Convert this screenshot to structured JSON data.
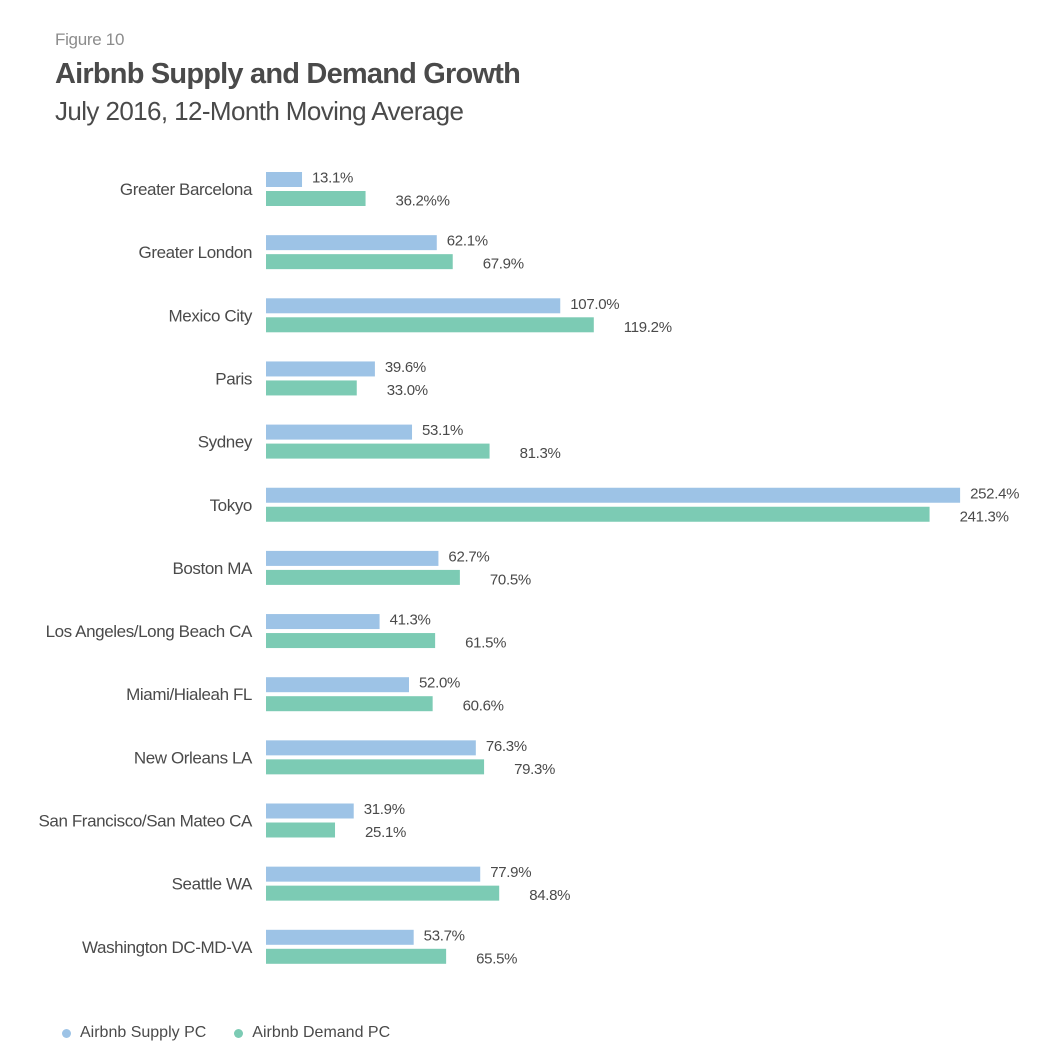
{
  "figure_label": "Figure 10",
  "chart_data": {
    "type": "bar",
    "orientation": "horizontal",
    "title": "Airbnb Supply and Demand Growth",
    "subtitle": "July 2016, 12-Month Moving Average",
    "categories": [
      "Greater Barcelona",
      "Greater London",
      "Mexico City",
      "Paris",
      "Sydney",
      "Tokyo",
      "Boston MA",
      "Los Angeles/Long Beach CA",
      "Miami/Hialeah FL",
      "New Orleans LA",
      "San Francisco/San Mateo CA",
      "Seattle WA",
      "Washington DC-MD-VA"
    ],
    "series": [
      {
        "name": "Airbnb Supply PC",
        "color": "#9dc3e6",
        "values": [
          13.1,
          62.1,
          107.0,
          39.6,
          53.1,
          252.4,
          62.7,
          41.3,
          52.0,
          76.3,
          31.9,
          77.9,
          53.7
        ],
        "labels": [
          "13.1%",
          "62.1%",
          "107.0%",
          "39.6%",
          "53.1%",
          "252.4%",
          "62.7%",
          "41.3%",
          "52.0%",
          "76.3%",
          "31.9%",
          "77.9%",
          "53.7%"
        ]
      },
      {
        "name": "Airbnb Demand PC",
        "color": "#7ccbb4",
        "values": [
          36.2,
          67.9,
          119.2,
          33.0,
          81.3,
          241.3,
          70.5,
          61.5,
          60.6,
          79.3,
          25.1,
          84.8,
          65.5
        ],
        "labels": [
          "36.2%%",
          "67.9%",
          "119.2%",
          "33.0%",
          "81.3%",
          "241.3%",
          "70.5%",
          "61.5%",
          "60.6%",
          "79.3%",
          "25.1%",
          "84.8%",
          "65.5%"
        ]
      }
    ],
    "xlabel": "",
    "ylabel": "",
    "grid": false,
    "legend_position": "bottom-left"
  }
}
